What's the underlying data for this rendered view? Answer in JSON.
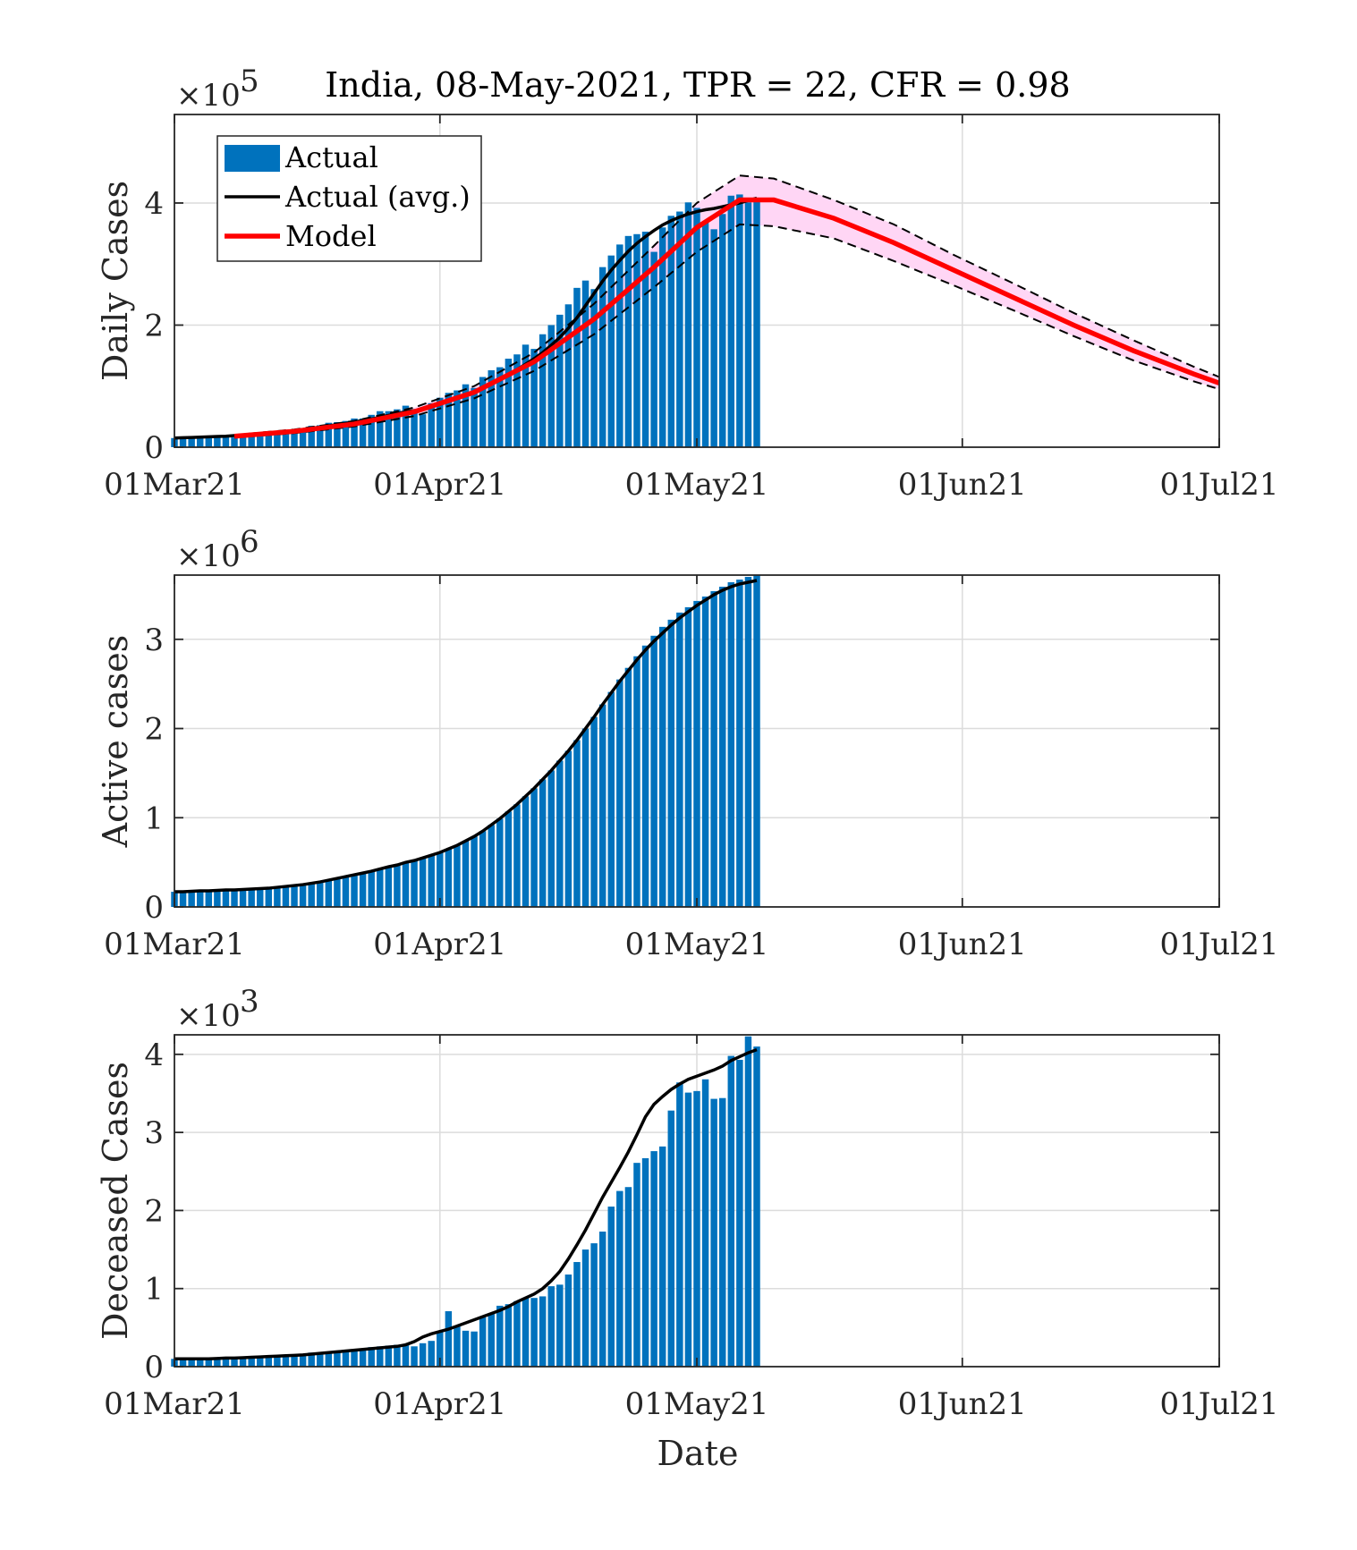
{
  "figure_title": "India, 08-May-2021, TPR = 22, CFR = 0.98",
  "x_label": "Date",
  "x_ticks": [
    "01Mar21",
    "01Apr21",
    "01May21",
    "01Jun21",
    "01Jul21"
  ],
  "x_range": [
    "2021-03-01",
    "2021-07-01"
  ],
  "colors": {
    "actual_bar": "#0072BD",
    "actual_avg": "#000000",
    "model": "#FF0000",
    "band_fill": "#FFD6F5",
    "band_edge": "#000000",
    "grid": "#DCDCDC"
  },
  "chart_data": [
    {
      "type": "bar",
      "id": "daily",
      "ylabel": "Daily Cases",
      "exponent": "×10",
      "exponent_power": "5",
      "ylim": [
        0,
        5.45
      ],
      "yticks": [
        "0",
        "2",
        "4"
      ],
      "yticks_values": [
        0,
        2,
        4
      ],
      "grid": true,
      "legend": {
        "position": "top-left",
        "entries": [
          "Actual",
          "Actual (avg.)",
          "Model"
        ]
      },
      "x_dates": [
        "2021-03-01",
        "2021-03-02",
        "2021-03-03",
        "2021-03-04",
        "2021-03-05",
        "2021-03-06",
        "2021-03-07",
        "2021-03-08",
        "2021-03-09",
        "2021-03-10",
        "2021-03-11",
        "2021-03-12",
        "2021-03-13",
        "2021-03-14",
        "2021-03-15",
        "2021-03-16",
        "2021-03-17",
        "2021-03-18",
        "2021-03-19",
        "2021-03-20",
        "2021-03-21",
        "2021-03-22",
        "2021-03-23",
        "2021-03-24",
        "2021-03-25",
        "2021-03-26",
        "2021-03-27",
        "2021-03-28",
        "2021-03-29",
        "2021-03-30",
        "2021-03-31",
        "2021-04-01",
        "2021-04-02",
        "2021-04-03",
        "2021-04-04",
        "2021-04-05",
        "2021-04-06",
        "2021-04-07",
        "2021-04-08",
        "2021-04-09",
        "2021-04-10",
        "2021-04-11",
        "2021-04-12",
        "2021-04-13",
        "2021-04-14",
        "2021-04-15",
        "2021-04-16",
        "2021-04-17",
        "2021-04-18",
        "2021-04-19",
        "2021-04-20",
        "2021-04-21",
        "2021-04-22",
        "2021-04-23",
        "2021-04-24",
        "2021-04-25",
        "2021-04-26",
        "2021-04-27",
        "2021-04-28",
        "2021-04-29",
        "2021-04-30",
        "2021-05-01",
        "2021-05-02",
        "2021-05-03",
        "2021-05-04",
        "2021-05-05",
        "2021-05-06",
        "2021-05-07",
        "2021-05-08"
      ],
      "actual": [
        0.15,
        0.16,
        0.17,
        0.17,
        0.17,
        0.18,
        0.18,
        0.16,
        0.18,
        0.18,
        0.23,
        0.24,
        0.25,
        0.26,
        0.25,
        0.28,
        0.35,
        0.36,
        0.4,
        0.41,
        0.43,
        0.47,
        0.47,
        0.53,
        0.59,
        0.59,
        0.62,
        0.68,
        0.56,
        0.54,
        0.72,
        0.81,
        0.89,
        0.93,
        1.03,
        0.97,
        1.15,
        1.26,
        1.31,
        1.45,
        1.52,
        1.68,
        1.61,
        1.85,
        2.0,
        2.17,
        2.34,
        2.61,
        2.73,
        2.59,
        2.95,
        3.14,
        3.32,
        3.46,
        3.49,
        3.53,
        3.2,
        3.6,
        3.79,
        3.86,
        4.01,
        3.92,
        3.68,
        3.57,
        3.82,
        4.12,
        4.14,
        4.01,
        4.03
      ],
      "actual_avg": [
        0.15,
        0.155,
        0.16,
        0.165,
        0.17,
        0.175,
        0.18,
        0.19,
        0.2,
        0.21,
        0.22,
        0.23,
        0.24,
        0.26,
        0.27,
        0.29,
        0.31,
        0.33,
        0.35,
        0.37,
        0.39,
        0.41,
        0.44,
        0.46,
        0.49,
        0.52,
        0.55,
        0.58,
        0.6,
        0.62,
        0.66,
        0.7,
        0.75,
        0.8,
        0.85,
        0.9,
        0.96,
        1.03,
        1.1,
        1.18,
        1.27,
        1.36,
        1.45,
        1.55,
        1.67,
        1.8,
        1.95,
        2.12,
        2.32,
        2.52,
        2.72,
        2.9,
        3.06,
        3.21,
        3.34,
        3.45,
        3.55,
        3.64,
        3.71,
        3.77,
        3.82,
        3.86,
        3.89,
        3.91,
        3.94,
        3.97,
        4.0,
        4.04,
        4.08
      ],
      "model_dates": [
        "2021-03-08",
        "2021-03-15",
        "2021-03-22",
        "2021-03-29",
        "2021-04-05",
        "2021-04-12",
        "2021-04-19",
        "2021-04-26",
        "2021-05-01",
        "2021-05-06",
        "2021-05-10",
        "2021-05-17",
        "2021-05-24",
        "2021-05-31",
        "2021-06-07",
        "2021-06-14",
        "2021-06-21",
        "2021-06-28",
        "2021-07-01"
      ],
      "model": [
        0.18,
        0.26,
        0.38,
        0.58,
        0.9,
        1.4,
        2.1,
        2.95,
        3.6,
        4.05,
        4.05,
        3.75,
        3.35,
        2.9,
        2.45,
        2.0,
        1.58,
        1.2,
        1.05
      ],
      "band_upper": [
        0.2,
        0.29,
        0.43,
        0.65,
        1.0,
        1.55,
        2.35,
        3.3,
        4.0,
        4.45,
        4.4,
        4.05,
        3.65,
        3.15,
        2.68,
        2.2,
        1.75,
        1.32,
        1.15
      ],
      "band_lower": [
        0.16,
        0.23,
        0.34,
        0.51,
        0.8,
        1.25,
        1.85,
        2.62,
        3.2,
        3.65,
        3.62,
        3.42,
        3.05,
        2.65,
        2.24,
        1.82,
        1.42,
        1.08,
        0.95
      ]
    },
    {
      "type": "bar",
      "id": "active",
      "ylabel": "Active cases",
      "exponent": "×10",
      "exponent_power": "6",
      "ylim": [
        0,
        3.72
      ],
      "yticks": [
        "0",
        "1",
        "2",
        "3"
      ],
      "yticks_values": [
        0,
        1,
        2,
        3
      ],
      "grid": true,
      "actual": [
        0.17,
        0.17,
        0.175,
        0.18,
        0.18,
        0.185,
        0.19,
        0.19,
        0.195,
        0.2,
        0.205,
        0.21,
        0.22,
        0.23,
        0.24,
        0.25,
        0.265,
        0.28,
        0.3,
        0.32,
        0.34,
        0.36,
        0.38,
        0.4,
        0.425,
        0.45,
        0.47,
        0.5,
        0.52,
        0.55,
        0.58,
        0.61,
        0.65,
        0.69,
        0.74,
        0.79,
        0.85,
        0.92,
        0.99,
        1.07,
        1.15,
        1.24,
        1.33,
        1.43,
        1.53,
        1.64,
        1.75,
        1.87,
        2.0,
        2.13,
        2.27,
        2.41,
        2.55,
        2.68,
        2.81,
        2.93,
        3.04,
        3.14,
        3.22,
        3.3,
        3.36,
        3.43,
        3.48,
        3.54,
        3.59,
        3.64,
        3.67,
        3.7,
        3.72
      ],
      "actual_avg": [
        0.17,
        0.17,
        0.175,
        0.18,
        0.18,
        0.185,
        0.19,
        0.19,
        0.195,
        0.2,
        0.205,
        0.21,
        0.22,
        0.23,
        0.24,
        0.25,
        0.265,
        0.28,
        0.3,
        0.32,
        0.34,
        0.36,
        0.38,
        0.4,
        0.425,
        0.45,
        0.47,
        0.5,
        0.52,
        0.55,
        0.58,
        0.61,
        0.65,
        0.69,
        0.74,
        0.79,
        0.85,
        0.92,
        0.99,
        1.07,
        1.15,
        1.24,
        1.33,
        1.43,
        1.53,
        1.64,
        1.75,
        1.87,
        2.0,
        2.13,
        2.27,
        2.4,
        2.53,
        2.65,
        2.77,
        2.88,
        2.98,
        3.07,
        3.16,
        3.24,
        3.31,
        3.38,
        3.44,
        3.5,
        3.55,
        3.59,
        3.62,
        3.64,
        3.66
      ]
    },
    {
      "type": "bar",
      "id": "deceased",
      "ylabel": "Deceased Cases",
      "exponent": "×10",
      "exponent_power": "3",
      "ylim": [
        0,
        4.25
      ],
      "yticks": [
        "0",
        "1",
        "2",
        "3",
        "4"
      ],
      "yticks_values": [
        0,
        1,
        2,
        3,
        4
      ],
      "grid": true,
      "actual": [
        0.1,
        0.1,
        0.1,
        0.1,
        0.11,
        0.11,
        0.1,
        0.12,
        0.12,
        0.12,
        0.13,
        0.14,
        0.14,
        0.15,
        0.16,
        0.16,
        0.18,
        0.18,
        0.19,
        0.2,
        0.2,
        0.22,
        0.23,
        0.25,
        0.26,
        0.27,
        0.28,
        0.28,
        0.26,
        0.3,
        0.33,
        0.45,
        0.71,
        0.52,
        0.46,
        0.45,
        0.63,
        0.68,
        0.78,
        0.8,
        0.84,
        0.88,
        0.88,
        0.9,
        1.03,
        1.05,
        1.18,
        1.34,
        1.5,
        1.58,
        1.73,
        2.05,
        2.25,
        2.3,
        2.61,
        2.67,
        2.76,
        2.82,
        3.28,
        3.64,
        3.51,
        3.53,
        3.68,
        3.43,
        3.44,
        3.98,
        3.93,
        4.23,
        4.1
      ],
      "actual_avg": [
        0.1,
        0.1,
        0.1,
        0.1,
        0.1,
        0.105,
        0.11,
        0.11,
        0.115,
        0.12,
        0.125,
        0.13,
        0.135,
        0.14,
        0.145,
        0.15,
        0.16,
        0.17,
        0.18,
        0.19,
        0.2,
        0.21,
        0.22,
        0.23,
        0.24,
        0.25,
        0.26,
        0.28,
        0.32,
        0.38,
        0.42,
        0.45,
        0.48,
        0.52,
        0.56,
        0.6,
        0.64,
        0.68,
        0.72,
        0.77,
        0.83,
        0.88,
        0.93,
        1.0,
        1.1,
        1.22,
        1.38,
        1.56,
        1.75,
        1.96,
        2.17,
        2.36,
        2.55,
        2.75,
        2.97,
        3.2,
        3.36,
        3.46,
        3.55,
        3.62,
        3.68,
        3.72,
        3.76,
        3.8,
        3.85,
        3.92,
        3.97,
        4.02,
        4.06
      ]
    }
  ]
}
